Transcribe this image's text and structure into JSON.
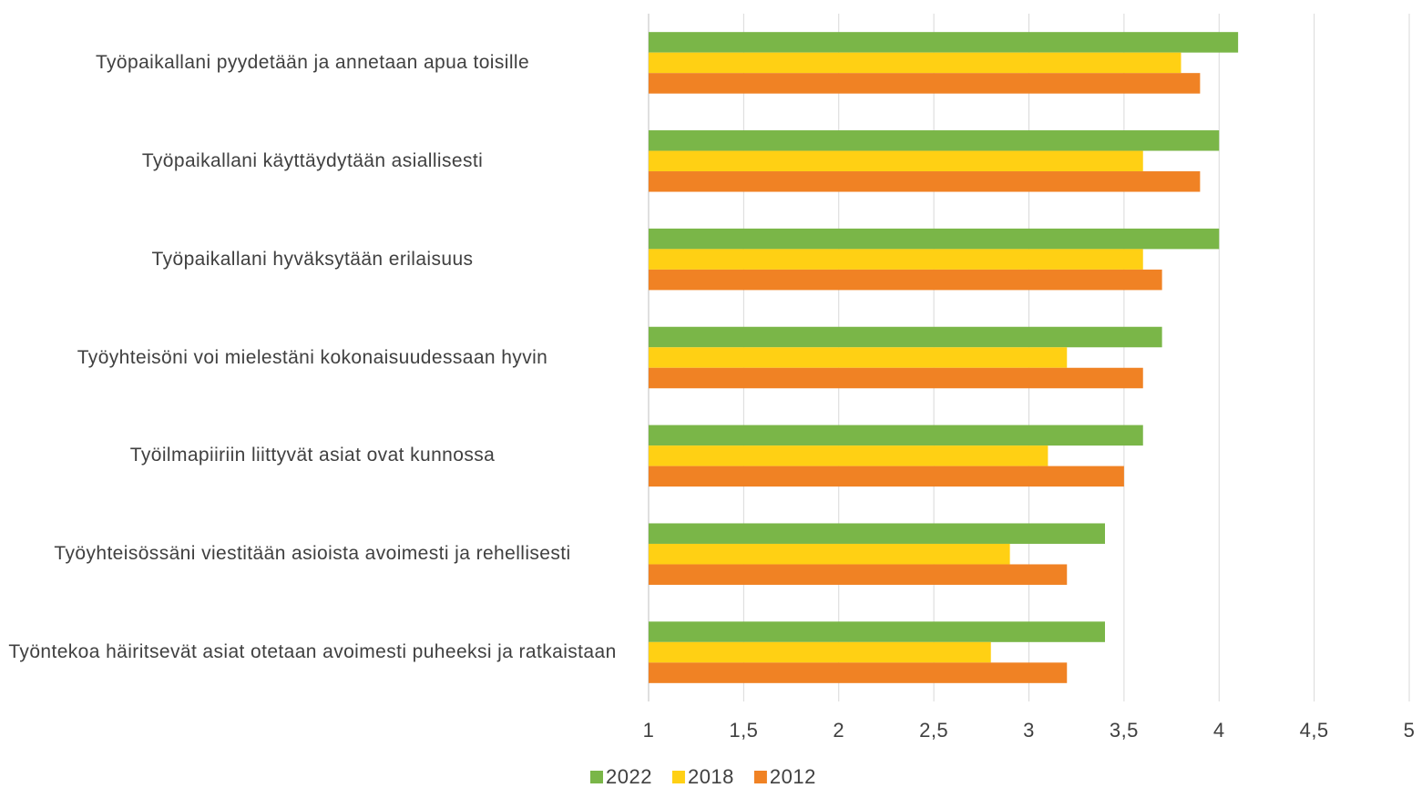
{
  "chart_data": {
    "type": "barh",
    "categories": [
      "Työpaikallani pyydetään ja annetaan apua toisille",
      "Työpaikallani käyttäydytään asiallisesti",
      "Työpaikallani hyväksytään erilaisuus",
      "Työyhteisöni voi mielestäni kokonaisuudessaan hyvin",
      "Työilmapiiriin liittyvät asiat ovat kunnossa",
      "Työyhteisössäni viestitään asioista avoimesti ja rehellisesti",
      "Työntekoa häiritsevät asiat otetaan avoimesti puheeksi ja ratkaistaan"
    ],
    "series": [
      {
        "name": "2022",
        "color": "#7ab648",
        "values": [
          4.1,
          4.0,
          4.0,
          3.7,
          3.6,
          3.4,
          3.4
        ]
      },
      {
        "name": "2018",
        "color": "#ffd014",
        "values": [
          3.8,
          3.6,
          3.6,
          3.2,
          3.1,
          2.9,
          2.8
        ]
      },
      {
        "name": "2012",
        "color": "#f08224",
        "values": [
          3.9,
          3.9,
          3.7,
          3.6,
          3.5,
          3.2,
          3.2
        ]
      }
    ],
    "xlim": [
      1,
      5
    ],
    "xticks": [
      1,
      {
        "value": 1.5,
        "label": "1,5"
      },
      2,
      {
        "value": 2.5,
        "label": "2,5"
      },
      3,
      {
        "value": 3.5,
        "label": "3,5"
      },
      4,
      {
        "value": 4.5,
        "label": "4,5"
      },
      5
    ],
    "grid": true,
    "legend": "bottom"
  }
}
